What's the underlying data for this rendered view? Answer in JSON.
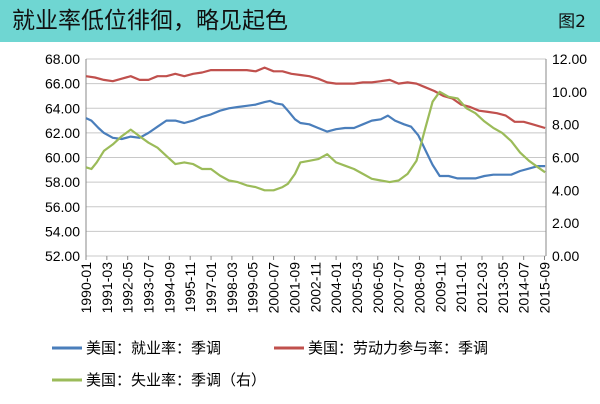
{
  "header": {
    "title": "就业率低位徘徊，略见起色",
    "figure_label": "图2",
    "background": "#6fd6d2"
  },
  "chart_data": {
    "type": "line",
    "left_axis": {
      "range": [
        52,
        68
      ],
      "ticks": [
        "52.00",
        "54.00",
        "56.00",
        "58.00",
        "60.00",
        "62.00",
        "64.00",
        "66.00",
        "68.00"
      ]
    },
    "right_axis": {
      "range": [
        0,
        12
      ],
      "ticks": [
        "0.00",
        "2.00",
        "4.00",
        "6.00",
        "8.00",
        "10.00",
        "12.00"
      ]
    },
    "x_range": [
      1990.0,
      2015.75
    ],
    "x_ticks": [
      "1990-01",
      "1991-03",
      "1992-05",
      "1993-07",
      "1994-09",
      "1995-11",
      "1997-01",
      "1998-03",
      "1999-05",
      "2000-07",
      "2001-09",
      "2002-11",
      "2004-01",
      "2005-03",
      "2006-05",
      "2007-07",
      "2008-09",
      "2009-11",
      "2011-01",
      "2012-03",
      "2013-05",
      "2014-07",
      "2015-09"
    ],
    "grid": "horizontal",
    "legend": "bottom",
    "series": [
      {
        "name": "美国：就业率：季调",
        "axis": "left",
        "color": "#4a7ebb",
        "points": [
          [
            1990.0,
            63.2
          ],
          [
            1990.3,
            63.0
          ],
          [
            1990.7,
            62.4
          ],
          [
            1991.0,
            62.0
          ],
          [
            1991.5,
            61.6
          ],
          [
            1992.0,
            61.5
          ],
          [
            1992.5,
            61.7
          ],
          [
            1993.0,
            61.6
          ],
          [
            1993.5,
            62.0
          ],
          [
            1994.0,
            62.5
          ],
          [
            1994.5,
            63.0
          ],
          [
            1995.0,
            63.0
          ],
          [
            1995.5,
            62.8
          ],
          [
            1996.0,
            63.0
          ],
          [
            1996.5,
            63.3
          ],
          [
            1997.0,
            63.5
          ],
          [
            1997.5,
            63.8
          ],
          [
            1998.0,
            64.0
          ],
          [
            1998.5,
            64.1
          ],
          [
            1999.0,
            64.2
          ],
          [
            1999.5,
            64.3
          ],
          [
            2000.0,
            64.5
          ],
          [
            2000.3,
            64.6
          ],
          [
            2000.6,
            64.4
          ],
          [
            2001.0,
            64.3
          ],
          [
            2001.3,
            63.8
          ],
          [
            2001.7,
            63.1
          ],
          [
            2002.0,
            62.8
          ],
          [
            2002.5,
            62.7
          ],
          [
            2003.0,
            62.4
          ],
          [
            2003.5,
            62.1
          ],
          [
            2004.0,
            62.3
          ],
          [
            2004.5,
            62.4
          ],
          [
            2005.0,
            62.4
          ],
          [
            2005.5,
            62.7
          ],
          [
            2006.0,
            63.0
          ],
          [
            2006.5,
            63.1
          ],
          [
            2006.9,
            63.4
          ],
          [
            2007.3,
            63.0
          ],
          [
            2007.8,
            62.7
          ],
          [
            2008.2,
            62.5
          ],
          [
            2008.6,
            61.8
          ],
          [
            2009.0,
            60.6
          ],
          [
            2009.4,
            59.4
          ],
          [
            2009.8,
            58.5
          ],
          [
            2010.3,
            58.5
          ],
          [
            2010.8,
            58.3
          ],
          [
            2011.3,
            58.3
          ],
          [
            2011.8,
            58.3
          ],
          [
            2012.3,
            58.5
          ],
          [
            2012.8,
            58.6
          ],
          [
            2013.3,
            58.6
          ],
          [
            2013.8,
            58.6
          ],
          [
            2014.3,
            58.9
          ],
          [
            2014.8,
            59.1
          ],
          [
            2015.3,
            59.3
          ],
          [
            2015.7,
            59.3
          ]
        ]
      },
      {
        "name": "美国：劳动力参与率：季调",
        "axis": "left",
        "color": "#c0504d",
        "points": [
          [
            1990.0,
            66.6
          ],
          [
            1990.5,
            66.5
          ],
          [
            1991.0,
            66.3
          ],
          [
            1991.5,
            66.2
          ],
          [
            1992.0,
            66.4
          ],
          [
            1992.5,
            66.6
          ],
          [
            1993.0,
            66.3
          ],
          [
            1993.5,
            66.3
          ],
          [
            1994.0,
            66.6
          ],
          [
            1994.5,
            66.6
          ],
          [
            1995.0,
            66.8
          ],
          [
            1995.5,
            66.6
          ],
          [
            1996.0,
            66.8
          ],
          [
            1996.5,
            66.9
          ],
          [
            1997.0,
            67.1
          ],
          [
            1997.5,
            67.1
          ],
          [
            1998.0,
            67.1
          ],
          [
            1998.5,
            67.1
          ],
          [
            1999.0,
            67.1
          ],
          [
            1999.5,
            67.0
          ],
          [
            2000.0,
            67.3
          ],
          [
            2000.5,
            67.0
          ],
          [
            2001.0,
            67.0
          ],
          [
            2001.5,
            66.8
          ],
          [
            2002.0,
            66.7
          ],
          [
            2002.5,
            66.6
          ],
          [
            2003.0,
            66.4
          ],
          [
            2003.5,
            66.1
          ],
          [
            2004.0,
            66.0
          ],
          [
            2004.5,
            66.0
          ],
          [
            2005.0,
            66.0
          ],
          [
            2005.5,
            66.1
          ],
          [
            2006.0,
            66.1
          ],
          [
            2006.5,
            66.2
          ],
          [
            2007.0,
            66.3
          ],
          [
            2007.5,
            66.0
          ],
          [
            2008.0,
            66.1
          ],
          [
            2008.5,
            66.0
          ],
          [
            2009.0,
            65.7
          ],
          [
            2009.5,
            65.4
          ],
          [
            2010.0,
            65.0
          ],
          [
            2010.5,
            64.8
          ],
          [
            2011.0,
            64.3
          ],
          [
            2011.5,
            64.1
          ],
          [
            2012.0,
            63.8
          ],
          [
            2012.5,
            63.7
          ],
          [
            2013.0,
            63.6
          ],
          [
            2013.5,
            63.4
          ],
          [
            2014.0,
            62.9
          ],
          [
            2014.5,
            62.9
          ],
          [
            2015.0,
            62.7
          ],
          [
            2015.7,
            62.4
          ]
        ]
      },
      {
        "name": "美国：失业率：季调（右）",
        "axis": "right",
        "color": "#9bbb59",
        "points": [
          [
            1990.0,
            5.4
          ],
          [
            1990.3,
            5.3
          ],
          [
            1990.6,
            5.7
          ],
          [
            1991.0,
            6.4
          ],
          [
            1991.5,
            6.8
          ],
          [
            1992.0,
            7.3
          ],
          [
            1992.5,
            7.7
          ],
          [
            1993.0,
            7.3
          ],
          [
            1993.5,
            6.9
          ],
          [
            1994.0,
            6.6
          ],
          [
            1994.5,
            6.1
          ],
          [
            1995.0,
            5.6
          ],
          [
            1995.5,
            5.7
          ],
          [
            1996.0,
            5.6
          ],
          [
            1996.5,
            5.3
          ],
          [
            1997.0,
            5.3
          ],
          [
            1997.5,
            4.9
          ],
          [
            1998.0,
            4.6
          ],
          [
            1998.5,
            4.5
          ],
          [
            1999.0,
            4.3
          ],
          [
            1999.5,
            4.2
          ],
          [
            2000.0,
            4.0
          ],
          [
            2000.5,
            4.0
          ],
          [
            2001.0,
            4.2
          ],
          [
            2001.3,
            4.4
          ],
          [
            2001.7,
            5.0
          ],
          [
            2002.0,
            5.7
          ],
          [
            2002.5,
            5.8
          ],
          [
            2003.0,
            5.9
          ],
          [
            2003.5,
            6.2
          ],
          [
            2004.0,
            5.7
          ],
          [
            2004.5,
            5.5
          ],
          [
            2005.0,
            5.3
          ],
          [
            2005.5,
            5.0
          ],
          [
            2006.0,
            4.7
          ],
          [
            2006.5,
            4.6
          ],
          [
            2007.0,
            4.5
          ],
          [
            2007.5,
            4.6
          ],
          [
            2008.0,
            5.0
          ],
          [
            2008.5,
            5.8
          ],
          [
            2009.0,
            7.8
          ],
          [
            2009.4,
            9.4
          ],
          [
            2009.8,
            10.0
          ],
          [
            2010.3,
            9.7
          ],
          [
            2010.8,
            9.6
          ],
          [
            2011.3,
            9.0
          ],
          [
            2011.8,
            8.7
          ],
          [
            2012.3,
            8.2
          ],
          [
            2012.8,
            7.8
          ],
          [
            2013.3,
            7.5
          ],
          [
            2013.8,
            7.0
          ],
          [
            2014.3,
            6.3
          ],
          [
            2014.8,
            5.8
          ],
          [
            2015.3,
            5.4
          ],
          [
            2015.7,
            5.1
          ]
        ]
      }
    ]
  }
}
